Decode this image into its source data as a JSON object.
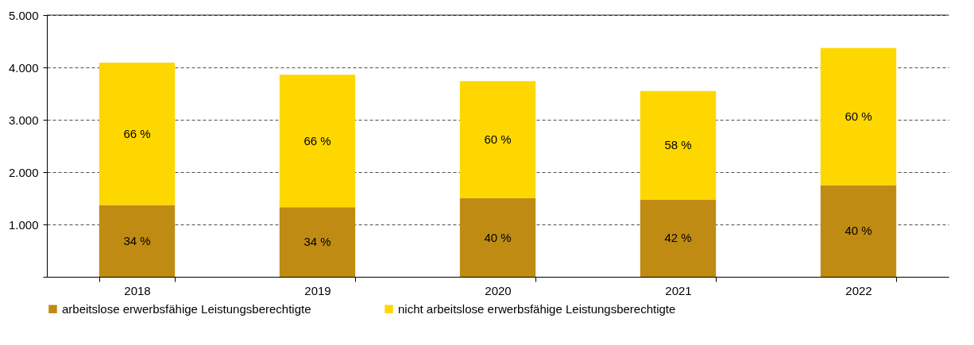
{
  "chart_data": {
    "type": "bar",
    "stacked": true,
    "categories": [
      "2018",
      "2019",
      "2020",
      "2021",
      "2022"
    ],
    "series": [
      {
        "name": "arbeitslose erwerbsfähige Leistungsberechtigte",
        "color": "#bf8b12",
        "values": [
          1370,
          1330,
          1500,
          1470,
          1750
        ]
      },
      {
        "name": "nicht arbeitslose erwerbsfähige Leistungsberechtigte",
        "color": "#ffd700",
        "values": [
          2720,
          2530,
          2240,
          2080,
          2620
        ]
      }
    ],
    "annotations": [
      "34 %",
      "34 %",
      "40 %",
      "42 %",
      "40 %",
      "66 %",
      "66 %",
      "60 %",
      "58 %",
      "60 %"
    ],
    "ylim": [
      0,
      5000
    ],
    "yticks": [
      {
        "value": 0,
        "label": null
      },
      {
        "value": 1000,
        "label": "1.000"
      },
      {
        "value": 2000,
        "label": "2.000"
      },
      {
        "value": 3000,
        "label": "3.000"
      },
      {
        "value": 4000,
        "label": "4.000"
      },
      {
        "value": 5000,
        "label": "5.000"
      }
    ],
    "grid": "y",
    "legend": "bottom"
  }
}
